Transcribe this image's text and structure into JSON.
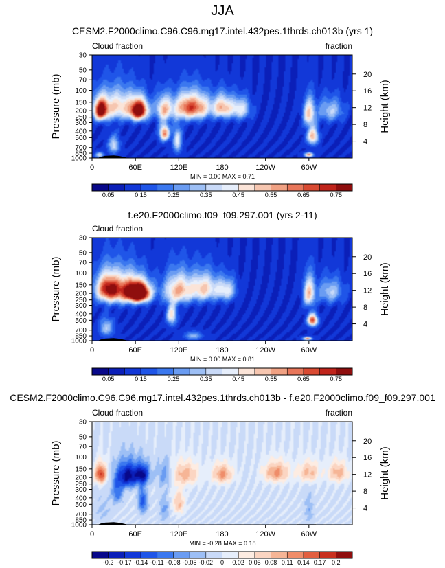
{
  "page_title": "JJA",
  "colors": {
    "scale": [
      "#08088a",
      "#0b1fb8",
      "#1238d8",
      "#1f55e8",
      "#3b78ef",
      "#6a9cf2",
      "#9dbff5",
      "#c9daf8",
      "#e6eefb",
      "#fbe4d8",
      "#f6c6b0",
      "#f0a183",
      "#e8765a",
      "#d94a32",
      "#c0241b",
      "#8f0e0e"
    ],
    "diff": [
      "#08088a",
      "#0b1fb8",
      "#1238d8",
      "#1f55e8",
      "#3b78ef",
      "#6a9cf2",
      "#9dbff5",
      "#c9daf8",
      "#e6eefb",
      "#fdece2",
      "#fbd5c2",
      "#f6b596",
      "#ef8d6a",
      "#e25f40",
      "#c8301f",
      "#8f0e0e"
    ],
    "terrain": "#000000"
  },
  "chart_data": [
    {
      "id": "panel1",
      "type": "heatmap",
      "title": "CESM2.F2000climo.C96.C96.mg17.intel.432pes.1thrds.ch013b (yrs 1)",
      "left_label": "Cloud fraction",
      "right_label": "fraction",
      "ylabel": "Pressure (mb)",
      "y2label": "Height (km)",
      "x_ticks": [
        "0",
        "60E",
        "120E",
        "180",
        "120W",
        "60W"
      ],
      "x_tick_lon": [
        0,
        60,
        120,
        180,
        240,
        300
      ],
      "xlim": [
        0,
        360
      ],
      "p_ticks": [
        "30",
        "50",
        "70",
        "100",
        "150",
        "200",
        "250",
        "300",
        "400",
        "500",
        "700",
        "850",
        "1000"
      ],
      "p_tick_values": [
        30,
        50,
        70,
        100,
        150,
        200,
        250,
        300,
        400,
        500,
        700,
        850,
        1000
      ],
      "ylim_mb": [
        30,
        1000
      ],
      "z_ticks": [
        "20",
        "16",
        "12",
        "8",
        "4"
      ],
      "z_tick_values": [
        20,
        16,
        12,
        8,
        4
      ],
      "stats": "MIN =   0.00  MAX =   0.71",
      "min": 0.0,
      "max": 0.71,
      "colorbar_labels": [
        "0.05",
        "0.15",
        "0.25",
        "0.35",
        "0.45",
        "0.55",
        "0.65",
        "0.75"
      ],
      "features": [
        {
          "lon": 12,
          "p": 200,
          "v": 0.62,
          "wl": 9,
          "wp": 70
        },
        {
          "lon": 65,
          "p": 200,
          "v": 0.71,
          "wl": 12,
          "wp": 70
        },
        {
          "lon": 35,
          "p": 175,
          "v": 0.4,
          "wl": 30,
          "wp": 90
        },
        {
          "lon": 100,
          "p": 190,
          "v": 0.42,
          "wl": 12,
          "wp": 80
        },
        {
          "lon": 130,
          "p": 180,
          "v": 0.5,
          "wl": 16,
          "wp": 80
        },
        {
          "lon": 150,
          "p": 180,
          "v": 0.38,
          "wl": 15,
          "wp": 80
        },
        {
          "lon": 180,
          "p": 180,
          "v": 0.45,
          "wl": 14,
          "wp": 70
        },
        {
          "lon": 205,
          "p": 190,
          "v": 0.32,
          "wl": 14,
          "wp": 70
        },
        {
          "lon": 100,
          "p": 430,
          "v": 0.52,
          "wl": 7,
          "wp": 120
        },
        {
          "lon": 118,
          "p": 560,
          "v": 0.32,
          "wl": 6,
          "wp": 250
        },
        {
          "lon": 30,
          "p": 650,
          "v": 0.28,
          "wl": 8,
          "wp": 200
        },
        {
          "lon": 300,
          "p": 220,
          "v": 0.4,
          "wl": 8,
          "wp": 100
        },
        {
          "lon": 305,
          "p": 480,
          "v": 0.45,
          "wl": 8,
          "wp": 140
        },
        {
          "lon": 300,
          "p": 900,
          "v": 0.52,
          "wl": 6,
          "wp": 60
        },
        {
          "lon": 330,
          "p": 200,
          "v": 0.25,
          "wl": 18,
          "wp": 80
        },
        {
          "lon": 10,
          "p": 900,
          "v": 0.3,
          "wl": 6,
          "wp": 80
        }
      ],
      "background": 0.1
    },
    {
      "id": "panel2",
      "type": "heatmap",
      "title": "f.e20.F2000climo.f09_f09.297.001 (yrs 2-11)",
      "left_label": "Cloud fraction",
      "right_label": "",
      "ylabel": "Pressure (mb)",
      "y2label": "Height (km)",
      "x_ticks": [
        "0",
        "60E",
        "120E",
        "180",
        "120W",
        "60W"
      ],
      "x_tick_lon": [
        0,
        60,
        120,
        180,
        240,
        300
      ],
      "xlim": [
        0,
        360
      ],
      "p_ticks": [
        "30",
        "50",
        "70",
        "100",
        "150",
        "200",
        "250",
        "300",
        "400",
        "500",
        "700",
        "850",
        "1000"
      ],
      "p_tick_values": [
        30,
        50,
        70,
        100,
        150,
        200,
        250,
        300,
        400,
        500,
        700,
        850,
        1000
      ],
      "ylim_mb": [
        30,
        1000
      ],
      "z_ticks": [
        "20",
        "16",
        "12",
        "8",
        "4"
      ],
      "z_tick_values": [
        20,
        16,
        12,
        8,
        4
      ],
      "stats": "MIN =   0.00  MAX =   0.81",
      "min": 0.0,
      "max": 0.81,
      "colorbar_labels": [
        "0.05",
        "0.15",
        "0.25",
        "0.35",
        "0.45",
        "0.55",
        "0.65",
        "0.75"
      ],
      "features": [
        {
          "lon": 65,
          "p": 200,
          "v": 0.81,
          "wl": 14,
          "wp": 60
        },
        {
          "lon": 45,
          "p": 180,
          "v": 0.55,
          "wl": 30,
          "wp": 90
        },
        {
          "lon": 20,
          "p": 170,
          "v": 0.42,
          "wl": 15,
          "wp": 80
        },
        {
          "lon": 120,
          "p": 180,
          "v": 0.45,
          "wl": 20,
          "wp": 90
        },
        {
          "lon": 155,
          "p": 170,
          "v": 0.4,
          "wl": 18,
          "wp": 80
        },
        {
          "lon": 185,
          "p": 180,
          "v": 0.32,
          "wl": 14,
          "wp": 70
        },
        {
          "lon": 110,
          "p": 420,
          "v": 0.38,
          "wl": 7,
          "wp": 150
        },
        {
          "lon": 20,
          "p": 650,
          "v": 0.25,
          "wl": 10,
          "wp": 200
        },
        {
          "lon": 300,
          "p": 200,
          "v": 0.42,
          "wl": 8,
          "wp": 100
        },
        {
          "lon": 305,
          "p": 500,
          "v": 0.6,
          "wl": 7,
          "wp": 100
        },
        {
          "lon": 298,
          "p": 930,
          "v": 0.52,
          "wl": 6,
          "wp": 50
        },
        {
          "lon": 330,
          "p": 190,
          "v": 0.25,
          "wl": 18,
          "wp": 80
        },
        {
          "lon": 140,
          "p": 850,
          "v": 0.22,
          "wl": 12,
          "wp": 120
        }
      ],
      "background": 0.1
    },
    {
      "id": "panel3",
      "type": "heatmap",
      "title": "CESM2.F2000climo.C96.C96.mg17.intel.432pes.1thrds.ch013b - f.e20.F2000climo.f09_f09.297.001",
      "left_label": "Cloud fraction",
      "right_label": "fraction",
      "ylabel": "Pressure (mb)",
      "y2label": "Height (km)",
      "x_ticks": [
        "0",
        "60E",
        "120E",
        "180",
        "120W",
        "60W"
      ],
      "x_tick_lon": [
        0,
        60,
        120,
        180,
        240,
        300
      ],
      "xlim": [
        0,
        360
      ],
      "p_ticks": [
        "30",
        "50",
        "70",
        "100",
        "150",
        "200",
        "250",
        "300",
        "400",
        "500",
        "700",
        "850",
        "1000"
      ],
      "p_tick_values": [
        30,
        50,
        70,
        100,
        150,
        200,
        250,
        300,
        400,
        500,
        700,
        850,
        1000
      ],
      "ylim_mb": [
        30,
        1000
      ],
      "z_ticks": [
        "20",
        "16",
        "12",
        "8",
        "4"
      ],
      "z_tick_values": [
        20,
        16,
        12,
        8,
        4
      ],
      "stats": "MIN =  -0.28  MAX =   0.18",
      "min": -0.28,
      "max": 0.18,
      "colorbar_labels": [
        "-0.2",
        "-0.17",
        "-0.14",
        "-0.11",
        "-0.08",
        "-0.05",
        "-0.02",
        "0",
        "0.02",
        "0.05",
        "0.08",
        "0.11",
        "0.14",
        "0.17",
        "0.2"
      ],
      "features": [
        {
          "lon": 12,
          "p": 180,
          "v": 0.18,
          "wl": 8,
          "wp": 60
        },
        {
          "lon": 50,
          "p": 190,
          "v": -0.2,
          "wl": 14,
          "wp": 80
        },
        {
          "lon": 70,
          "p": 180,
          "v": -0.16,
          "wl": 10,
          "wp": 60
        },
        {
          "lon": 35,
          "p": 320,
          "v": -0.1,
          "wl": 8,
          "wp": 150
        },
        {
          "lon": 70,
          "p": 450,
          "v": -0.12,
          "wl": 6,
          "wp": 200
        },
        {
          "lon": 100,
          "p": 180,
          "v": -0.06,
          "wl": 10,
          "wp": 80
        },
        {
          "lon": 130,
          "p": 180,
          "v": 0.1,
          "wl": 18,
          "wp": 70
        },
        {
          "lon": 180,
          "p": 180,
          "v": 0.12,
          "wl": 14,
          "wp": 60
        },
        {
          "lon": 120,
          "p": 480,
          "v": 0.09,
          "wl": 8,
          "wp": 200
        },
        {
          "lon": 100,
          "p": 600,
          "v": -0.06,
          "wl": 6,
          "wp": 250
        },
        {
          "lon": 255,
          "p": 170,
          "v": 0.12,
          "wl": 18,
          "wp": 60
        },
        {
          "lon": 300,
          "p": 170,
          "v": 0.1,
          "wl": 14,
          "wp": 60
        },
        {
          "lon": 340,
          "p": 170,
          "v": 0.1,
          "wl": 14,
          "wp": 60
        },
        {
          "lon": 300,
          "p": 600,
          "v": -0.04,
          "wl": 6,
          "wp": 300
        },
        {
          "lon": 15,
          "p": 600,
          "v": -0.03,
          "wl": 10,
          "wp": 250
        }
      ],
      "background": -0.005
    }
  ]
}
